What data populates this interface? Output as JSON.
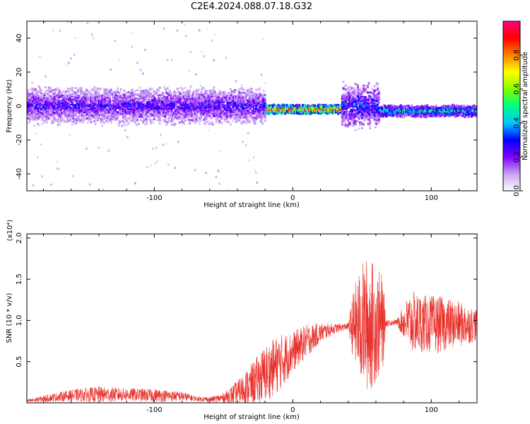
{
  "title": "C2E4.2024.088.07.18.G32",
  "chart_data": [
    {
      "type": "heatmap",
      "name": "spectrogram",
      "xlabel": "Height of straight line (km)",
      "ylabel": "Frequency (Hz)",
      "xlim": [
        -192,
        133
      ],
      "ylim": [
        -50,
        50
      ],
      "xticks": [
        -100,
        0,
        100
      ],
      "xtick_labels": [
        "-100",
        "0",
        "100"
      ],
      "yticks": [
        40,
        20,
        0,
        -20,
        -40
      ],
      "ytick_labels": [
        "40",
        "20",
        "0",
        "-20",
        "-40"
      ],
      "colorbar": {
        "label": "Normalized spectral amplitude",
        "range": [
          0,
          1
        ],
        "ticks": [
          0.0,
          0.2,
          0.4,
          0.6,
          0.8
        ],
        "tick_labels": [
          "0.0",
          "0.2",
          "0.4",
          "0.6",
          "0.8"
        ],
        "colormap": [
          "#ffffff",
          "#c8a0f0",
          "#8000ff",
          "#0000ff",
          "#00c8ff",
          "#00ff80",
          "#80ff00",
          "#ffff00",
          "#ff8000",
          "#ff0000",
          "#ff0080"
        ]
      },
      "bands": [
        {
          "x0": -192,
          "x1": -20,
          "center": 0,
          "halfwidth": 8,
          "level": 0.25,
          "scatter_halfwidth": 50
        },
        {
          "x0": -20,
          "x1": 35,
          "center": -2,
          "halfwidth": 2,
          "level": 0.9
        },
        {
          "x0": 35,
          "x1": 62,
          "center": 0,
          "halfwidth": 10,
          "level": 0.3
        },
        {
          "x0": 62,
          "x1": 133,
          "center": -3,
          "halfwidth": 2.5,
          "level": 0.45
        }
      ]
    },
    {
      "type": "line",
      "name": "snr",
      "xlabel": "Height of straight line (km)",
      "ylabel": "SNR (10 * v/v)",
      "yscale_label": "(x10⁴)",
      "xlim": [
        -192,
        133
      ],
      "ylim": [
        0,
        2.05
      ],
      "xticks": [
        -100,
        0,
        100
      ],
      "xtick_labels": [
        "-100",
        "0",
        "100"
      ],
      "yticks": [
        0.5,
        1.0,
        1.5,
        2.0
      ],
      "ytick_labels": [
        "0.5",
        "1.0",
        "1.5",
        "2.0"
      ],
      "color": "#e8302a",
      "envelope": {
        "x": [
          -192,
          -180,
          -160,
          -140,
          -120,
          -100,
          -80,
          -70,
          -60,
          -50,
          -40,
          -30,
          -20,
          -10,
          0,
          10,
          20,
          30,
          40,
          44,
          50,
          55,
          60,
          65,
          67,
          75,
          85,
          95,
          105,
          115,
          125,
          133
        ],
        "base": [
          0.02,
          0.05,
          0.09,
          0.1,
          0.1,
          0.09,
          0.08,
          0.05,
          0.04,
          0.06,
          0.12,
          0.22,
          0.35,
          0.48,
          0.62,
          0.75,
          0.85,
          0.9,
          0.93,
          0.94,
          0.95,
          0.95,
          0.95,
          0.96,
          0.97,
          0.98,
          0.98,
          0.96,
          0.95,
          0.96,
          0.95,
          0.95
        ],
        "amp": [
          0.02,
          0.04,
          0.07,
          0.1,
          0.08,
          0.08,
          0.06,
          0.03,
          0.03,
          0.06,
          0.15,
          0.25,
          0.35,
          0.35,
          0.25,
          0.2,
          0.12,
          0.06,
          0.04,
          0.45,
          0.75,
          0.85,
          0.7,
          0.6,
          0.05,
          0.03,
          0.38,
          0.35,
          0.35,
          0.3,
          0.25,
          0.2
        ]
      }
    }
  ]
}
